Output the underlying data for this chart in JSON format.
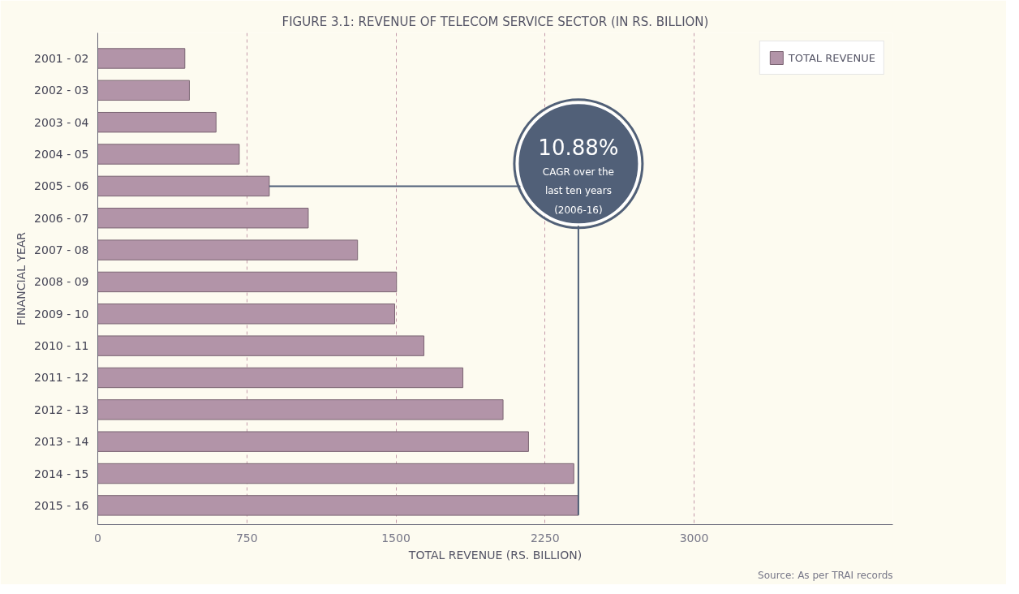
{
  "chart_data": {
    "type": "bar",
    "orientation": "horizontal",
    "title": "FIGURE 3.1: REVENUE OF TELECOM SERVICE SECTOR (IN RS. BILLION)",
    "xlabel": "TOTAL REVENUE (RS. BILLION)",
    "ylabel": "FINANCIAL YEAR",
    "categories": [
      "2001 - 02",
      "2002 - 03",
      "2003 - 04",
      "2004 - 05",
      "2005 - 06",
      "2006 - 07",
      "2007 - 08",
      "2008 - 09",
      "2009 - 10",
      "2010 - 11",
      "2011 - 12",
      "2012 - 13",
      "2013 - 14",
      "2014 - 15",
      "2015 - 16"
    ],
    "series": [
      {
        "name": "TOTAL REVENUE",
        "color": "#b294a8",
        "values": [
          438,
          461,
          595,
          712,
          863,
          1059,
          1307,
          1503,
          1494,
          1641,
          1837,
          2039,
          2167,
          2395,
          2418
        ]
      }
    ],
    "xlim": [
      0,
      4000
    ],
    "xticks": [
      0,
      750,
      1500,
      2250,
      3000
    ],
    "grid": "x",
    "legend": "top right",
    "annotations": [
      {
        "text": "10.88% CAGR over the last ten years (2006-16)",
        "x": 863,
        "y": "2005 - 06"
      },
      "Source: As per TRAI records"
    ]
  }
}
